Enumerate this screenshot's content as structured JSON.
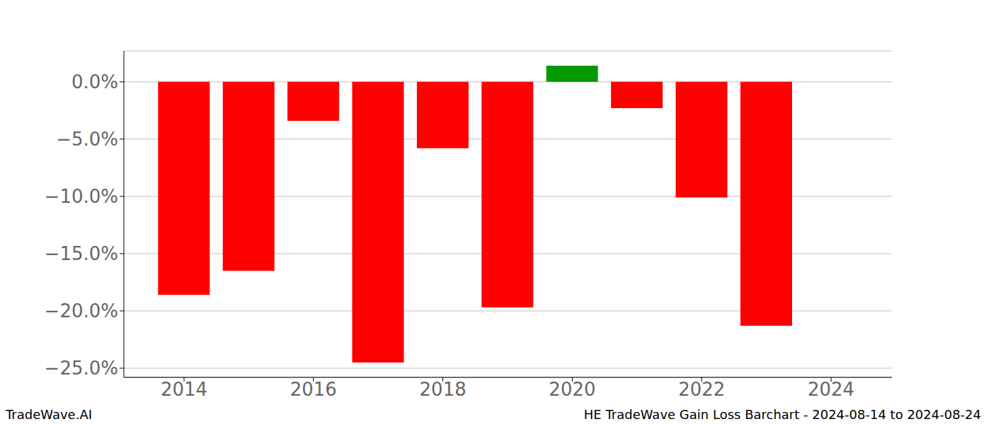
{
  "chart_data": {
    "type": "bar",
    "x": [
      2014,
      2015,
      2016,
      2017,
      2018,
      2019,
      2020,
      2021,
      2022,
      2023
    ],
    "values": [
      -18.6,
      -16.5,
      -3.4,
      -24.5,
      -5.8,
      -19.7,
      1.4,
      -2.3,
      -10.1,
      -21.3
    ],
    "colors": [
      "#ff0000",
      "#ff0000",
      "#ff0000",
      "#ff0000",
      "#ff0000",
      "#ff0000",
      "#009900",
      "#ff0000",
      "#ff0000",
      "#ff0000"
    ],
    "xlim": [
      2013.07,
      2024.94
    ],
    "xticks": [
      2014,
      2016,
      2018,
      2020,
      2022,
      2024
    ],
    "ylim": [
      -25.8,
      2.7
    ],
    "yticks": [
      {
        "value": 0,
        "label": "0.0%"
      },
      {
        "value": -5,
        "label": "−5.0%"
      },
      {
        "value": -10,
        "label": "−10.0%"
      },
      {
        "value": -15,
        "label": "−15.0%"
      },
      {
        "value": -20,
        "label": "−20.0%"
      },
      {
        "value": -25,
        "label": "−25.0%"
      }
    ],
    "grid": true,
    "annotations": [
      "TradeWave.AI",
      "HE TradeWave Gain Loss Barchart - 2024-08-14 to 2024-08-24"
    ]
  }
}
